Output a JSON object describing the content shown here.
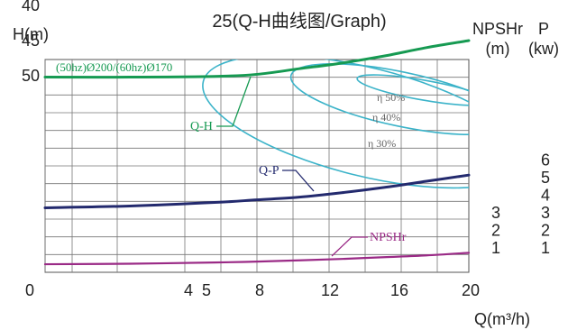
{
  "chart_data": {
    "type": "line",
    "title": "25(Q-H曲线图/Graph)",
    "subtitle": "(50hz)Ø200/(60hz)Ø170",
    "xlabel": "Q(m³/h)",
    "ylabel": "H(m)",
    "right_axes": {
      "npshr": {
        "title": "NPSHr",
        "unit": "(m)",
        "ticks": [
          "3",
          "2",
          "1"
        ]
      },
      "power": {
        "title": "P",
        "unit": "(kw)",
        "ticks": [
          "6",
          "5",
          "4",
          "3",
          "2",
          "1"
        ]
      }
    },
    "x_ticks": [
      "0",
      "4",
      "5",
      "8",
      "12",
      "16",
      "20"
    ],
    "h_ticks": [
      "50",
      "45",
      "40"
    ],
    "xlim": [
      0,
      20
    ],
    "grid": true,
    "series": [
      {
        "name": "Q-H",
        "color": "#169a52",
        "x": [
          0,
          4,
          8,
          10,
          12,
          14,
          16,
          18,
          20
        ],
        "y": [
          50.2,
          50.2,
          50.1,
          49.8,
          49.0,
          48.2,
          47.2,
          46.0,
          45.0
        ],
        "unit": "m"
      },
      {
        "name": "Q-P",
        "color": "#232a6e",
        "x": [
          0,
          4,
          8,
          10,
          12,
          14,
          16,
          18,
          20
        ],
        "y": [
          3.9,
          4.0,
          4.2,
          4.35,
          4.5,
          4.75,
          5.05,
          5.4,
          5.75
        ],
        "unit": "kW"
      },
      {
        "name": "NPSHr",
        "color": "#9a2a86",
        "x": [
          0,
          4,
          8,
          10,
          12,
          14,
          16,
          18,
          20
        ],
        "y": [
          0.6,
          0.63,
          0.7,
          0.75,
          0.82,
          0.9,
          1.0,
          1.1,
          1.25
        ],
        "unit": "m"
      }
    ],
    "efficiency_curves": [
      {
        "label": "η 30%",
        "color": "#3bb3c9"
      },
      {
        "label": "η 40%",
        "color": "#3bb3c9"
      },
      {
        "label": "η 50%",
        "color": "#3bb3c9"
      }
    ]
  }
}
